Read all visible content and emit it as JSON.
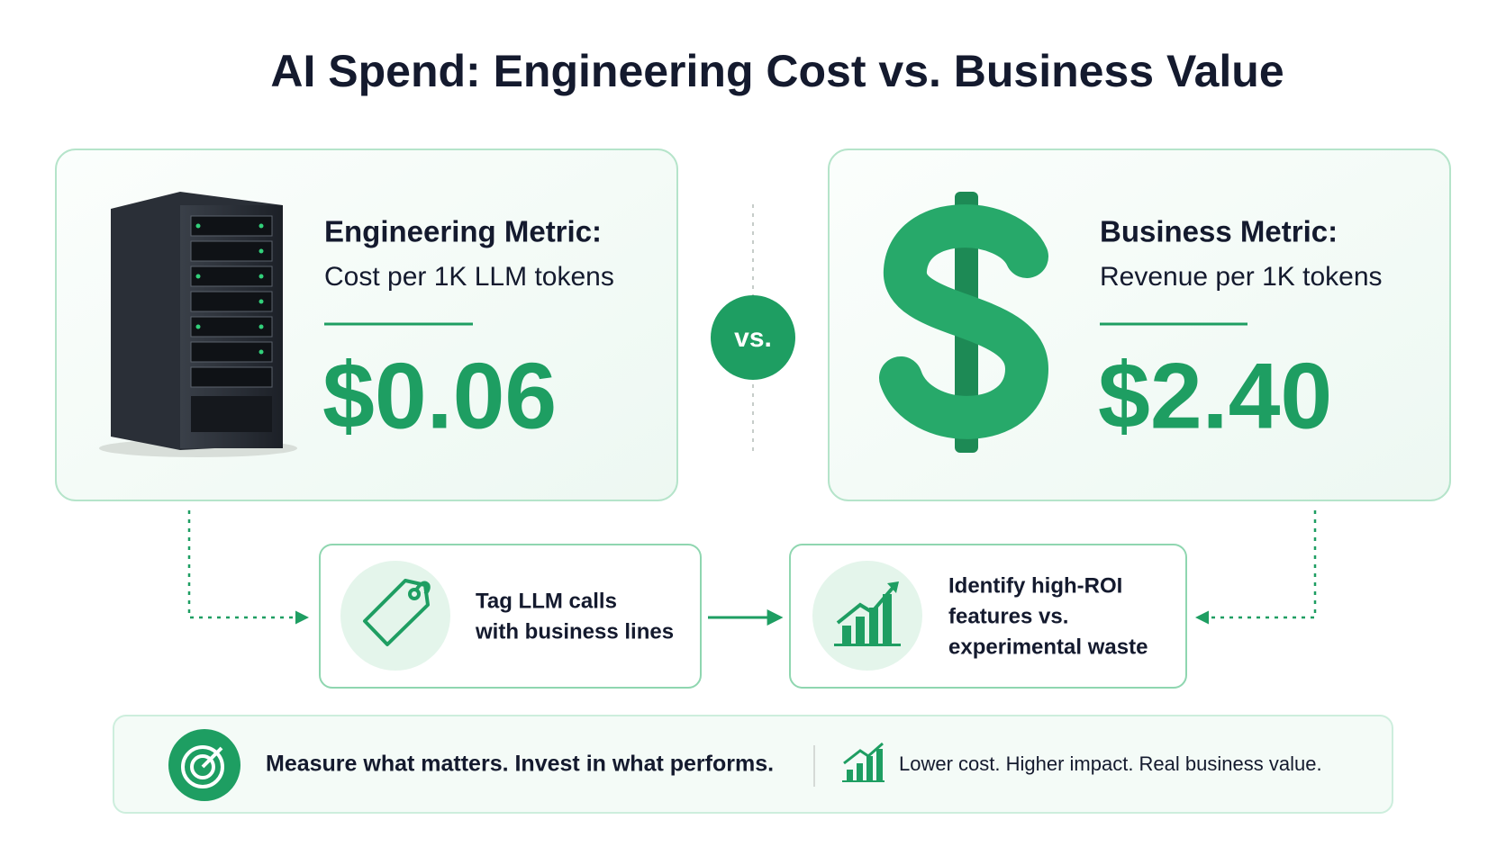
{
  "title": "AI Spend: Engineering Cost vs. Business Value",
  "cards": [
    {
      "heading": "Engineering Metric:",
      "subtitle": "Cost per 1K LLM tokens",
      "value": "$0.06"
    },
    {
      "heading": "Business Metric:",
      "subtitle": "Revenue per 1K tokens",
      "value": "$2.40"
    }
  ],
  "versus": "vs.",
  "steps": [
    {
      "lines": [
        "Tag LLM calls",
        "with business lines"
      ]
    },
    {
      "lines": [
        "Identify high-ROI",
        "features vs.",
        "experimental waste"
      ]
    }
  ],
  "footer": {
    "message": "Measure what matters. Invest in what performs.",
    "tagline": "Lower cost. Higher impact. Real business value."
  }
}
